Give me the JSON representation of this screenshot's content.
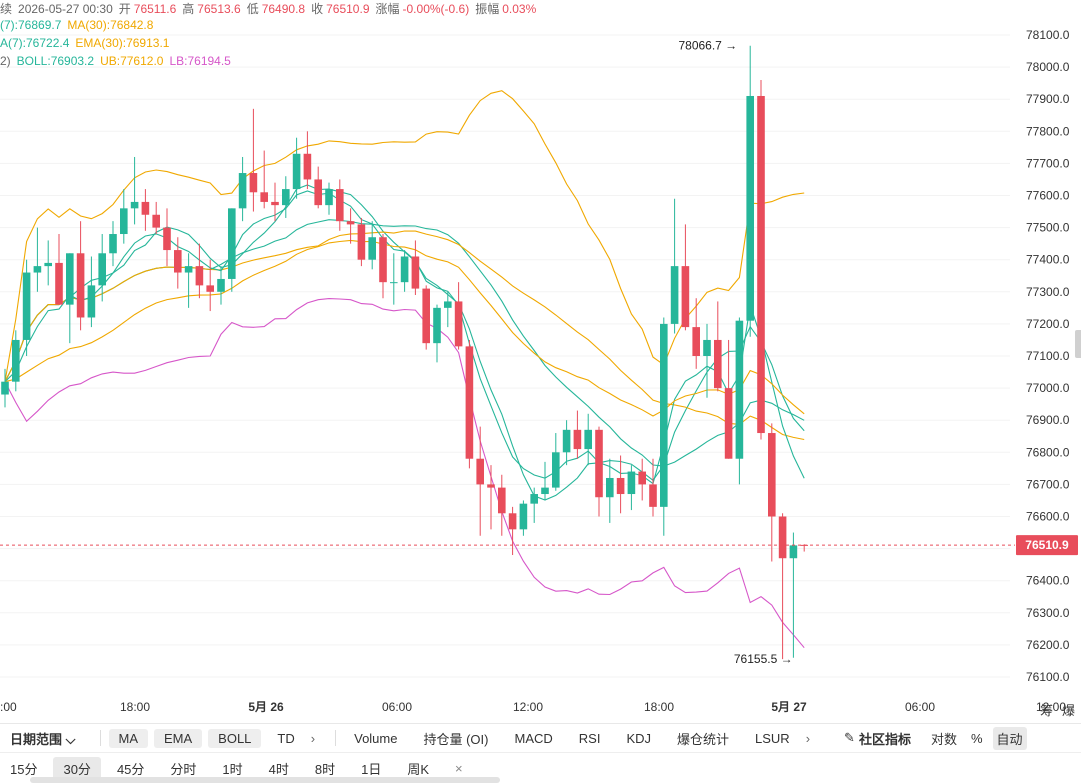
{
  "header": {
    "line1": [
      {
        "label": "",
        "value": "续",
        "color": "#666666"
      },
      {
        "label": "",
        "value": "2026-05-27 00:30",
        "color": "#666666"
      },
      {
        "label": "开",
        "value": "76511.6",
        "color": "#e84d5b"
      },
      {
        "label": "高",
        "value": "76513.6",
        "color": "#e84d5b"
      },
      {
        "label": "低",
        "value": "76490.8",
        "color": "#e84d5b"
      },
      {
        "label": "收",
        "value": "76510.9",
        "color": "#e84d5b"
      },
      {
        "label": "涨幅",
        "value": "-0.00%(-0.6)",
        "color": "#e84d5b"
      },
      {
        "label": "振幅",
        "value": "0.03%",
        "color": "#e84d5b"
      }
    ],
    "line2": [
      {
        "text": "(7):76869.7",
        "color": "#26b69a"
      },
      {
        "text": "MA(30):76842.8",
        "color": "#f0a800"
      }
    ],
    "line3": [
      {
        "text": "A(7):76722.4",
        "color": "#26b69a"
      },
      {
        "text": "EMA(30):76913.1",
        "color": "#f0a800"
      }
    ],
    "line4": [
      {
        "text": "2)",
        "color": "#666666"
      },
      {
        "text": "BOLL:76903.2",
        "color": "#26b69a"
      },
      {
        "text": "UB:77612.0",
        "color": "#f0a800"
      },
      {
        "text": "LB:76194.5",
        "color": "#d657c9"
      }
    ]
  },
  "colors": {
    "up": "#26b69a",
    "down": "#e84d5b",
    "ma7": "#26b69a",
    "ma30": "#f0a800",
    "ub": "#f0a800",
    "lb": "#d657c9",
    "grid": "#f3f3f3"
  },
  "y_ticks": [
    "78100.0",
    "78000.0",
    "77900.0",
    "77800.0",
    "77700.0",
    "77600.0",
    "77500.0",
    "77400.0",
    "77300.0",
    "77200.0",
    "77100.0",
    "77000.0",
    "76900.0",
    "76800.0",
    "76700.0",
    "76600.0",
    "76500.0",
    "76400.0",
    "76300.0",
    "76200.0",
    "76100.0"
  ],
  "x_ticks": [
    {
      "label": "2:00",
      "bold": false
    },
    {
      "label": "18:00",
      "bold": false
    },
    {
      "label": "5月 26",
      "bold": true
    },
    {
      "label": "06:00",
      "bold": false
    },
    {
      "label": "12:00",
      "bold": false
    },
    {
      "label": "18:00",
      "bold": false
    },
    {
      "label": "5月 27",
      "bold": true
    },
    {
      "label": "06:00",
      "bold": false
    },
    {
      "label": "12:00",
      "bold": false
    }
  ],
  "price_label": "76510.9",
  "high_label": "78066.7",
  "low_label": "76155.5",
  "chart_data": {
    "type": "candlestick",
    "interval": "30分",
    "last_price": 76510.9,
    "ylim": [
      76100,
      78100
    ],
    "ohlc": [
      [
        76980,
        77060,
        76940,
        77020
      ],
      [
        77020,
        77180,
        76990,
        77150
      ],
      [
        77150,
        77400,
        77100,
        77360
      ],
      [
        77360,
        77500,
        77300,
        77380
      ],
      [
        77380,
        77460,
        77320,
        77390
      ],
      [
        77390,
        77480,
        77260,
        77260
      ],
      [
        77260,
        77420,
        77140,
        77420
      ],
      [
        77420,
        77520,
        77180,
        77220
      ],
      [
        77220,
        77410,
        77190,
        77320
      ],
      [
        77320,
        77480,
        77270,
        77420
      ],
      [
        77420,
        77520,
        77380,
        77480
      ],
      [
        77480,
        77620,
        77450,
        77560
      ],
      [
        77560,
        77720,
        77510,
        77580
      ],
      [
        77580,
        77620,
        77490,
        77540
      ],
      [
        77540,
        77580,
        77480,
        77500
      ],
      [
        77500,
        77560,
        77380,
        77430
      ],
      [
        77430,
        77470,
        77310,
        77360
      ],
      [
        77360,
        77420,
        77250,
        77380
      ],
      [
        77380,
        77450,
        77280,
        77320
      ],
      [
        77320,
        77400,
        77240,
        77300
      ],
      [
        77300,
        77380,
        77260,
        77340
      ],
      [
        77340,
        77560,
        77300,
        77560
      ],
      [
        77560,
        77720,
        77520,
        77670
      ],
      [
        77670,
        77870,
        77550,
        77610
      ],
      [
        77610,
        77740,
        77560,
        77580
      ],
      [
        77580,
        77640,
        77520,
        77570
      ],
      [
        77570,
        77660,
        77530,
        77620
      ],
      [
        77620,
        77780,
        77590,
        77730
      ],
      [
        77730,
        77800,
        77620,
        77650
      ],
      [
        77650,
        77690,
        77560,
        77570
      ],
      [
        77570,
        77640,
        77540,
        77620
      ],
      [
        77620,
        77650,
        77490,
        77520
      ],
      [
        77520,
        77560,
        77450,
        77510
      ],
      [
        77510,
        77530,
        77380,
        77400
      ],
      [
        77400,
        77520,
        77370,
        77470
      ],
      [
        77470,
        77480,
        77280,
        77330
      ],
      [
        77330,
        77420,
        77260,
        77330
      ],
      [
        77330,
        77430,
        77300,
        77410
      ],
      [
        77410,
        77460,
        77290,
        77310
      ],
      [
        77310,
        77320,
        77120,
        77140
      ],
      [
        77140,
        77260,
        77080,
        77250
      ],
      [
        77250,
        77300,
        77190,
        77270
      ],
      [
        77270,
        77330,
        77120,
        77130
      ],
      [
        77130,
        77150,
        76750,
        76780
      ],
      [
        76780,
        76880,
        76540,
        76700
      ],
      [
        76700,
        76760,
        76560,
        76690
      ],
      [
        76690,
        76730,
        76540,
        76610
      ],
      [
        76610,
        76630,
        76480,
        76560
      ],
      [
        76560,
        76650,
        76540,
        76640
      ],
      [
        76640,
        76690,
        76580,
        76670
      ],
      [
        76670,
        76770,
        76650,
        76690
      ],
      [
        76690,
        76860,
        76680,
        76800
      ],
      [
        76800,
        76900,
        76760,
        76870
      ],
      [
        76870,
        76930,
        76780,
        76810
      ],
      [
        76810,
        76920,
        76760,
        76870
      ],
      [
        76870,
        76880,
        76600,
        76660
      ],
      [
        76660,
        76780,
        76580,
        76720
      ],
      [
        76720,
        76790,
        76610,
        76670
      ],
      [
        76670,
        76760,
        76620,
        76740
      ],
      [
        76740,
        76780,
        76650,
        76700
      ],
      [
        76700,
        76780,
        76600,
        76630
      ],
      [
        76630,
        77220,
        76540,
        77200
      ],
      [
        77200,
        77590,
        77170,
        77380
      ],
      [
        77380,
        77510,
        77180,
        77190
      ],
      [
        77190,
        77280,
        77060,
        77100
      ],
      [
        77100,
        77200,
        76970,
        77150
      ],
      [
        77150,
        77270,
        76990,
        77000
      ],
      [
        77000,
        77150,
        76780,
        76780
      ],
      [
        76780,
        77220,
        76700,
        77210
      ],
      [
        77210,
        78066.7,
        77160,
        77910
      ],
      [
        77910,
        77960,
        76840,
        76860
      ],
      [
        76860,
        76890,
        76460,
        76600
      ],
      [
        76600,
        76610,
        76155.5,
        76470
      ],
      [
        76470,
        76550,
        76160,
        76510
      ],
      [
        76511.6,
        76513.6,
        76490.8,
        76510.9
      ]
    ]
  },
  "toolbar": {
    "date_range": "日期范围",
    "indicators_main": [
      "MA",
      "EMA",
      "BOLL",
      "TD"
    ],
    "indicators_sub": [
      "Volume",
      "持仓量 (OI)",
      "MACD",
      "RSI",
      "KDJ",
      "爆仓统计",
      "LSUR"
    ],
    "community": "社区指标",
    "log": "对数",
    "pct": "%",
    "auto": "自动",
    "chou": "筹",
    "bao": "爆"
  },
  "intervals": {
    "items": [
      "15分",
      "30分",
      "45分",
      "分时",
      "1时",
      "4时",
      "8时",
      "1日",
      "周K"
    ],
    "selected": "30分",
    "close": "×"
  }
}
